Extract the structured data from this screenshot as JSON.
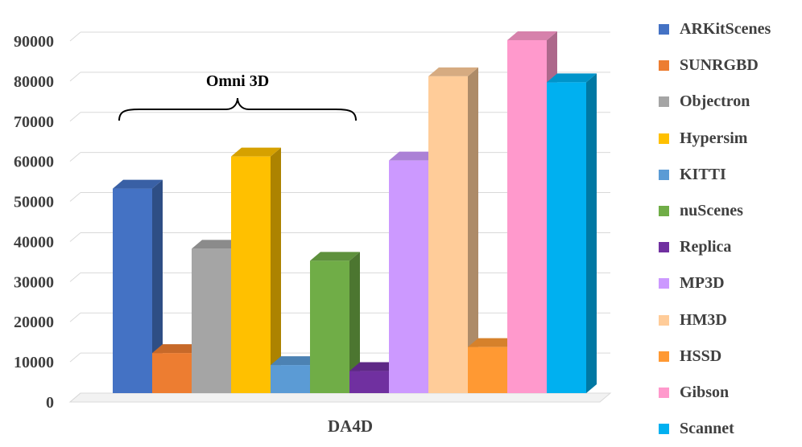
{
  "chart_data": {
    "type": "bar",
    "title": "",
    "xlabel": "",
    "ylabel": "",
    "categories": [
      "DA4D"
    ],
    "ylim": [
      0,
      90000
    ],
    "yticks": [
      0,
      10000,
      20000,
      30000,
      40000,
      50000,
      60000,
      70000,
      80000,
      90000
    ],
    "ytick_labels": [
      "0",
      "10000",
      "20000",
      "30000",
      "40000",
      "50000",
      "60000",
      "70000",
      "80000",
      "90000"
    ],
    "grid": true,
    "legend_position": "right",
    "style": "3d-column",
    "series": [
      {
        "name": "ARKitScenes",
        "values": [
          51000
        ],
        "color": "#4472C4"
      },
      {
        "name": "SUNRGBD",
        "values": [
          10000
        ],
        "color": "#ED7D31"
      },
      {
        "name": "Objectron",
        "values": [
          36000
        ],
        "color": "#A5A5A5"
      },
      {
        "name": "Hypersim",
        "values": [
          59000
        ],
        "color": "#FFC000"
      },
      {
        "name": "KITTI",
        "values": [
          7000
        ],
        "color": "#5B9BD5"
      },
      {
        "name": "nuScenes",
        "values": [
          33000
        ],
        "color": "#70AD47"
      },
      {
        "name": "Replica",
        "values": [
          5500
        ],
        "color": "#7030A0"
      },
      {
        "name": "MP3D",
        "values": [
          58000
        ],
        "color": "#CC99FF"
      },
      {
        "name": "HM3D",
        "values": [
          79000
        ],
        "color": "#FFCC99"
      },
      {
        "name": "HSSD",
        "values": [
          11500
        ],
        "color": "#FF9933"
      },
      {
        "name": "Gibson",
        "values": [
          88000
        ],
        "color": "#FF99CC"
      },
      {
        "name": "Scannet",
        "values": [
          77500
        ],
        "color": "#00B0F0"
      }
    ],
    "annotations": [
      {
        "text": "Omni 3D",
        "type": "brace",
        "spans_series": [
          "ARKitScenes",
          "SUNRGBD",
          "Objectron",
          "Hypersim",
          "KITTI",
          "nuScenes"
        ]
      }
    ]
  }
}
